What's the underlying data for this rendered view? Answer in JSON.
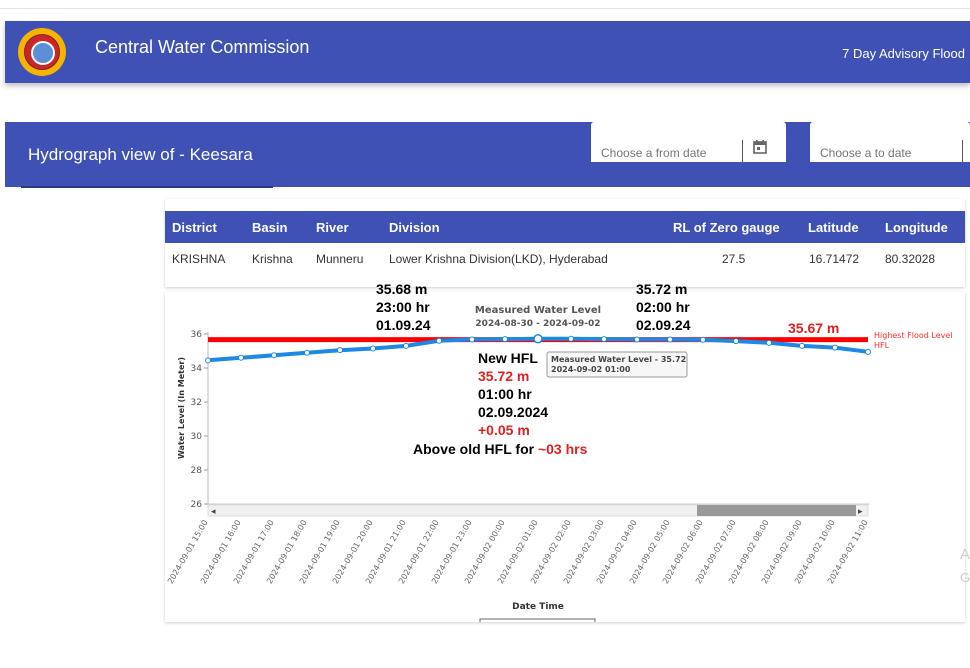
{
  "app": {
    "title": "Central Water Commission",
    "advisory_link": "7 Day Advisory Flood"
  },
  "hydro": {
    "title": "Hydrograph view of - Keesara",
    "from_date_placeholder": "Choose a from date",
    "to_date_placeholder": "Choose a to date"
  },
  "station_table": {
    "headers": [
      "District",
      "Basin",
      "River",
      "Division",
      "RL of Zero gauge",
      "Latitude",
      "Longitude"
    ],
    "row": [
      "KRISHNA",
      "Krishna",
      "Munneru",
      "Lower Krishna Division(LKD), Hyderabad",
      "27.5",
      "16.71472",
      "80.32028"
    ]
  },
  "annotations": {
    "a1": [
      "35.68 m",
      "23:00 hr",
      "01.09.24"
    ],
    "a2": [
      "35.72 m",
      "02:00 hr",
      "02.09.24"
    ],
    "a3": "35.67 m",
    "new_hfl": {
      "title": "New HFL",
      "value": "35.72 m",
      "time": "01:00 hr",
      "date": "02.09.2024",
      "delta": "+0.05 m",
      "above_prefix": "Above old HFL for ",
      "above_duration": "~03 hrs"
    }
  },
  "chart_data": {
    "type": "line",
    "title": "Measured Water Level",
    "subtitle": "2024-08-30 - 2024-09-02",
    "xlabel": "Date Time",
    "ylabel": "Water Level (In Meter)",
    "ylim": [
      26,
      36
    ],
    "yticks": [
      26,
      28,
      30,
      32,
      34,
      36
    ],
    "x": [
      "2024-09-01 15:00",
      "2024-09-01 16:00",
      "2024-09-01 17:00",
      "2024-09-01 18:00",
      "2024-09-01 19:00",
      "2024-09-01 20:00",
      "2024-09-01 21:00",
      "2024-09-01 22:00",
      "2024-09-01 23:00",
      "2024-09-02 00:00",
      "2024-09-02 01:00",
      "2024-09-02 02:00",
      "2024-09-02 03:00",
      "2024-09-02 04:00",
      "2024-09-02 05:00",
      "2024-09-02 06:00",
      "2024-09-02 07:00",
      "2024-09-02 08:00",
      "2024-09-02 09:00",
      "2024-09-02 10:00",
      "2024-09-02 11:00"
    ],
    "series": [
      {
        "name": "Measured Water Level",
        "color": "#1e88e5",
        "values": [
          34.45,
          34.6,
          34.75,
          34.9,
          35.05,
          35.15,
          35.3,
          35.6,
          35.68,
          35.7,
          35.72,
          35.72,
          35.7,
          35.68,
          35.68,
          35.66,
          35.58,
          35.48,
          35.3,
          35.2,
          34.95
        ]
      },
      {
        "name": "Highest Flood Level HFL",
        "color": "#ff0000",
        "constant": 35.67
      }
    ],
    "legend_labels": [
      "Highest Flood Level",
      "HFL"
    ],
    "tooltip": {
      "title": "Measured Water Level - 35.72",
      "time": "2024-09-02 01:00"
    },
    "scrollbar": {
      "visible_start_fraction": 0.75,
      "visible_end_fraction": 1.0
    }
  }
}
